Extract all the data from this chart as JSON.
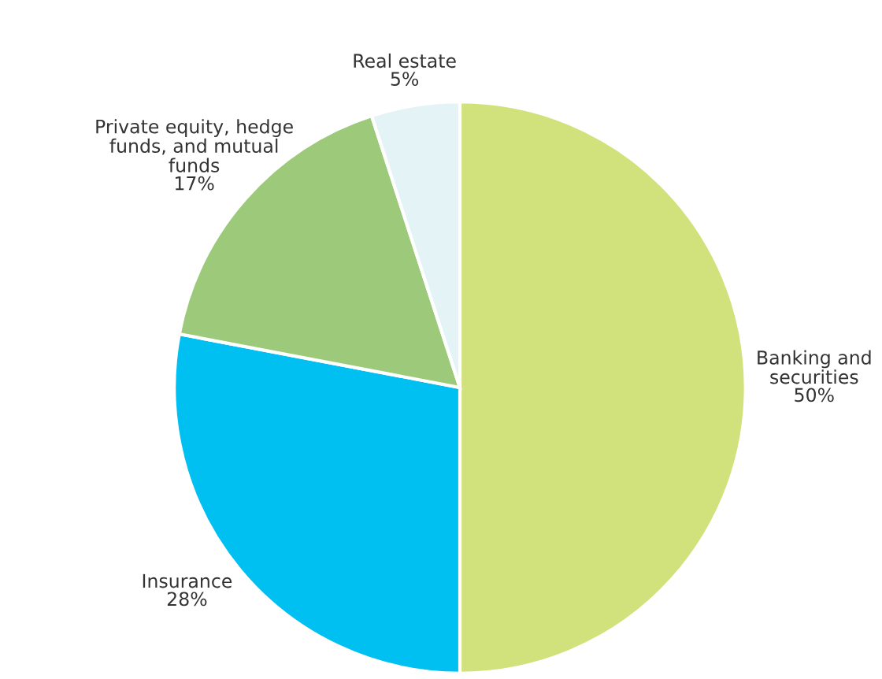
{
  "chart_data": {
    "type": "pie",
    "categories": [
      "Banking and\nsecurities",
      "Insurance",
      "Private equity, hedge\nfunds, and mutual\nfunds",
      "Real estate"
    ],
    "values": [
      50,
      28,
      17,
      5
    ],
    "colors": [
      "#d1e17b",
      "#00bff1",
      "#9dc97b",
      "#e3f3f6"
    ],
    "value_labels": [
      "50%",
      "28%",
      "17%",
      "5%"
    ]
  }
}
